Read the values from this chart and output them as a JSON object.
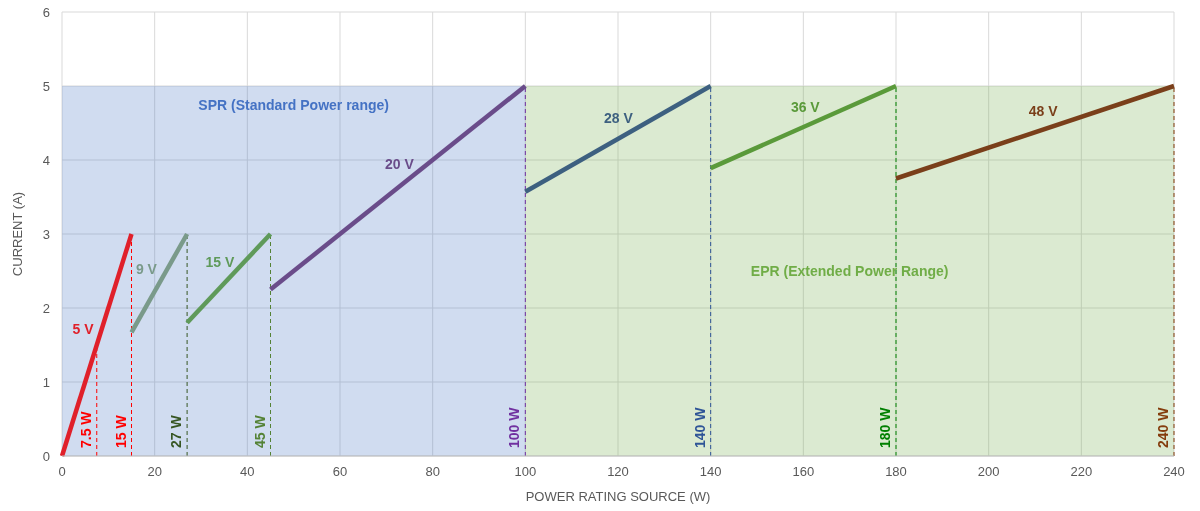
{
  "chart_data": {
    "type": "line",
    "xlabel": "POWER RATING SOURCE (W)",
    "ylabel": "CURRENT (A)",
    "xlim": [
      0,
      240
    ],
    "xticks": [
      0,
      20,
      40,
      60,
      80,
      100,
      120,
      140,
      160,
      180,
      200,
      220,
      240
    ],
    "ylim": [
      0,
      6
    ],
    "yticks": [
      0,
      1,
      2,
      3,
      4,
      5,
      6
    ],
    "grid": true,
    "marker": "none",
    "line_style": "solid",
    "series": [
      {
        "name": "5 V",
        "color": "#e0202a",
        "x": [
          0,
          15
        ],
        "values": [
          0,
          3
        ]
      },
      {
        "name": "9 V",
        "color": "#7a9a8a",
        "x": [
          15,
          27
        ],
        "values": [
          1.67,
          3
        ]
      },
      {
        "name": "15 V",
        "color": "#5f9a5a",
        "x": [
          27,
          45
        ],
        "values": [
          1.8,
          3
        ]
      },
      {
        "name": "20 V",
        "color": "#6a4c8a",
        "x": [
          45,
          100
        ],
        "values": [
          2.25,
          5
        ]
      },
      {
        "name": "28 V",
        "color": "#3d6080",
        "x": [
          100,
          140
        ],
        "values": [
          3.57,
          5
        ]
      },
      {
        "name": "36 V",
        "color": "#5a9a3a",
        "x": [
          140,
          180
        ],
        "values": [
          3.89,
          5
        ]
      },
      {
        "name": "48 V",
        "color": "#7a3f1a",
        "x": [
          180,
          240
        ],
        "values": [
          3.75,
          5
        ]
      }
    ],
    "bands": [
      {
        "axis": "x",
        "from": 0,
        "to": 100,
        "label": "SPR (Standard Power range)",
        "color": "#4472c4"
      },
      {
        "axis": "x",
        "from": 100,
        "to": 240,
        "label": "EPR (Extended Power Range)",
        "color": "#70ad47"
      }
    ],
    "ref_lines": [
      {
        "axis": "x",
        "value": 7.5,
        "label": "7.5 W",
        "color": "#ff0000",
        "line_style": "dashed"
      },
      {
        "axis": "x",
        "value": 15,
        "label": "15 W",
        "color": "#ff0000",
        "line_style": "dashed"
      },
      {
        "axis": "x",
        "value": 27,
        "label": "27 W",
        "color": "#375623",
        "line_style": "dashed"
      },
      {
        "axis": "x",
        "value": 45,
        "label": "45 W",
        "color": "#548235",
        "line_style": "dashed"
      },
      {
        "axis": "x",
        "value": 100,
        "label": "100 W",
        "color": "#7030a0",
        "line_style": "dashed"
      },
      {
        "axis": "x",
        "value": 140,
        "label": "140 W",
        "color": "#2f5597",
        "line_style": "dashed"
      },
      {
        "axis": "x",
        "value": 180,
        "label": "180 W",
        "color": "#008000",
        "line_style": "dashed"
      },
      {
        "axis": "x",
        "value": 240,
        "label": "240 W",
        "color": "#843c0c",
        "line_style": "dashed"
      }
    ]
  }
}
